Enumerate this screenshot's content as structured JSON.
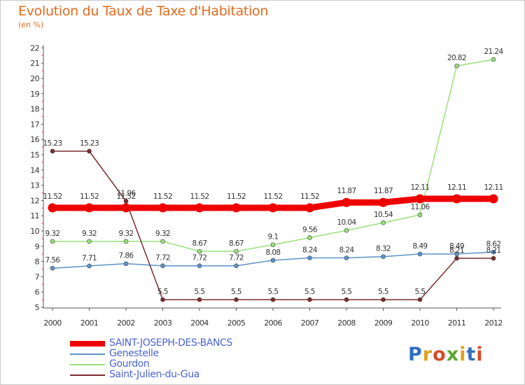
{
  "title": "Evolution du Taux de Taxe d'Habitation",
  "unit": "(en %)",
  "logo_text": "Proxiti",
  "chart_data": {
    "type": "line",
    "title": "Evolution du Taux de Taxe d'Habitation",
    "ylabel": "(en %)",
    "xlabel": "",
    "ylim": [
      5,
      22
    ],
    "grid": false,
    "legend_position": "bottom-left",
    "categories": [
      "2000",
      "2001",
      "2002",
      "2003",
      "2004",
      "2005",
      "2006",
      "2007",
      "2008",
      "2009",
      "2010",
      "2011",
      "2012"
    ],
    "yticks": [
      "5",
      "6",
      "7",
      "8",
      "9",
      "10",
      "11",
      "12",
      "13",
      "14",
      "15",
      "16",
      "17",
      "18",
      "19",
      "20",
      "21",
      "22"
    ],
    "series": [
      {
        "name": "SAINT-JOSEPH-DES-BANCS",
        "color": "#ee0000",
        "values": [
          11.52,
          11.52,
          11.52,
          11.52,
          11.52,
          11.52,
          11.52,
          11.52,
          11.87,
          11.87,
          12.11,
          12.11,
          12.11
        ],
        "labels": [
          "11.52",
          "11.52",
          "11.52",
          "11.52",
          "11.52",
          "11.52",
          "11.52",
          "11.52",
          "11.87",
          "11.87",
          "12.11",
          "12.11",
          "12.11"
        ]
      },
      {
        "name": "Genestelle",
        "color": "#5b93c8",
        "values": [
          7.56,
          7.71,
          7.86,
          7.72,
          7.72,
          7.72,
          8.08,
          8.24,
          8.24,
          8.32,
          8.49,
          8.49,
          8.62
        ],
        "labels": [
          "7.56",
          "7.71",
          "7.86",
          "7.72",
          "7.72",
          "7.72",
          "8.08",
          "8.24",
          "8.24",
          "8.32",
          "8.49",
          "8.49",
          "8.62"
        ]
      },
      {
        "name": "Gourdon",
        "color": "#99e07a",
        "values": [
          9.32,
          9.32,
          9.32,
          9.32,
          8.67,
          8.67,
          9.1,
          9.56,
          10.04,
          10.54,
          11.06,
          20.82,
          21.24
        ],
        "labels": [
          "9.32",
          "9.32",
          "9.32",
          "9.32",
          "8.67",
          "8.67",
          "9.1",
          "9.56",
          "10.04",
          "10.54",
          "11.06",
          "20.82",
          "21.24"
        ]
      },
      {
        "name": "Saint-Julien-du-Gua",
        "color": "#7b2b2b",
        "values": [
          15.23,
          15.23,
          11.96,
          5.5,
          5.5,
          5.5,
          5.5,
          5.5,
          5.5,
          5.5,
          5.5,
          8.21,
          8.21
        ],
        "labels": [
          "15.23",
          "15.23",
          "11.96",
          "5.5",
          "5.5",
          "5.5",
          "5.5",
          "5.5",
          "5.5",
          "5.5",
          "5.5",
          "8.21",
          "8.21"
        ]
      }
    ]
  }
}
